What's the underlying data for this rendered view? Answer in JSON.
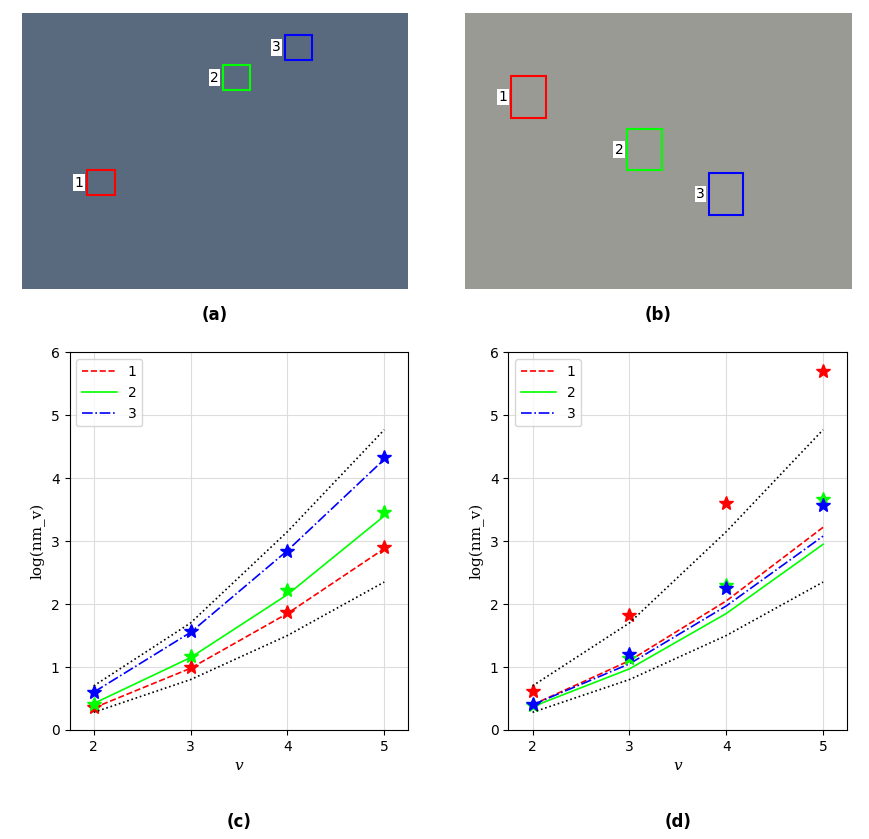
{
  "images": [
    {
      "title": "(a)",
      "boxes": [
        {
          "label": "1",
          "color": "#ff0000"
        },
        {
          "label": "2",
          "color": "#00ff00"
        },
        {
          "label": "3",
          "color": "#0000ff"
        }
      ]
    },
    {
      "title": "(b)",
      "boxes": [
        {
          "label": "1",
          "color": "#ff0000"
        },
        {
          "label": "2",
          "color": "#00ff00"
        },
        {
          "label": "3",
          "color": "#0000ff"
        }
      ]
    }
  ],
  "chart_data": [
    {
      "type": "line",
      "title": "(c)",
      "x_label": "v",
      "y_label": "log(nm_v)",
      "x": [
        2,
        3,
        4,
        5
      ],
      "xlim": [
        1.75,
        5.25
      ],
      "xticks": [
        2,
        3,
        4,
        5
      ],
      "ylim": [
        0,
        6
      ],
      "yticks": [
        0,
        1,
        2,
        3,
        4,
        5,
        6
      ],
      "grid": true,
      "legend": "upper left",
      "series": [
        {
          "name": "1",
          "type": "line",
          "color": "#ff0000",
          "line_style": "dashed",
          "values": [
            0.35,
            0.98,
            1.85,
            2.88
          ]
        },
        {
          "name": "2",
          "type": "line",
          "color": "#00ff00",
          "line_style": "solid",
          "values": [
            0.42,
            1.15,
            2.15,
            3.4
          ]
        },
        {
          "name": "3",
          "type": "line",
          "color": "#0000ff",
          "line_style": "dashdot",
          "values": [
            0.6,
            1.55,
            2.85,
            4.3
          ]
        },
        {
          "type": "scatter",
          "color": "#ff0000",
          "marker": "star",
          "values": [
            0.37,
            1.0,
            1.87,
            2.9
          ]
        },
        {
          "type": "scatter",
          "color": "#00ff00",
          "marker": "star",
          "values": [
            0.42,
            1.18,
            2.22,
            3.47
          ]
        },
        {
          "type": "scatter",
          "color": "#0000ff",
          "marker": "star",
          "values": [
            0.6,
            1.57,
            2.85,
            4.33
          ]
        },
        {
          "type": "line",
          "color": "#000000",
          "line_style": "dotted",
          "values": [
            0.28,
            0.8,
            1.5,
            2.35
          ]
        },
        {
          "type": "line",
          "color": "#000000",
          "line_style": "dotted",
          "values": [
            0.7,
            1.7,
            3.15,
            4.77
          ]
        }
      ]
    },
    {
      "type": "line",
      "title": "(d)",
      "x_label": "v",
      "y_label": "log(nm_v)",
      "x": [
        2,
        3,
        4,
        5
      ],
      "xlim": [
        1.75,
        5.25
      ],
      "xticks": [
        2,
        3,
        4,
        5
      ],
      "ylim": [
        0,
        6
      ],
      "yticks": [
        0,
        1,
        2,
        3,
        4,
        5,
        6
      ],
      "grid": true,
      "legend": "upper left",
      "series": [
        {
          "name": "1",
          "type": "line",
          "color": "#ff0000",
          "line_style": "dashed",
          "values": [
            0.4,
            1.1,
            2.05,
            3.22
          ]
        },
        {
          "name": "2",
          "type": "line",
          "color": "#00ff00",
          "line_style": "solid",
          "values": [
            0.37,
            0.97,
            1.85,
            2.95
          ]
        },
        {
          "name": "3",
          "type": "line",
          "color": "#0000ff",
          "line_style": "dashdot",
          "values": [
            0.4,
            1.05,
            1.97,
            3.08
          ]
        },
        {
          "type": "scatter",
          "color": "#ff0000",
          "marker": "star",
          "values": [
            0.62,
            1.83,
            3.6,
            5.7
          ]
        },
        {
          "type": "scatter",
          "color": "#00ff00",
          "marker": "star",
          "values": [
            0.4,
            1.15,
            2.3,
            3.67
          ]
        },
        {
          "type": "scatter",
          "color": "#0000ff",
          "marker": "star",
          "values": [
            0.42,
            1.2,
            2.25,
            3.58
          ]
        },
        {
          "type": "line",
          "color": "#000000",
          "line_style": "dotted",
          "values": [
            0.28,
            0.8,
            1.5,
            2.35
          ]
        },
        {
          "type": "line",
          "color": "#000000",
          "line_style": "dotted",
          "values": [
            0.7,
            1.7,
            3.15,
            4.77
          ]
        }
      ]
    }
  ]
}
